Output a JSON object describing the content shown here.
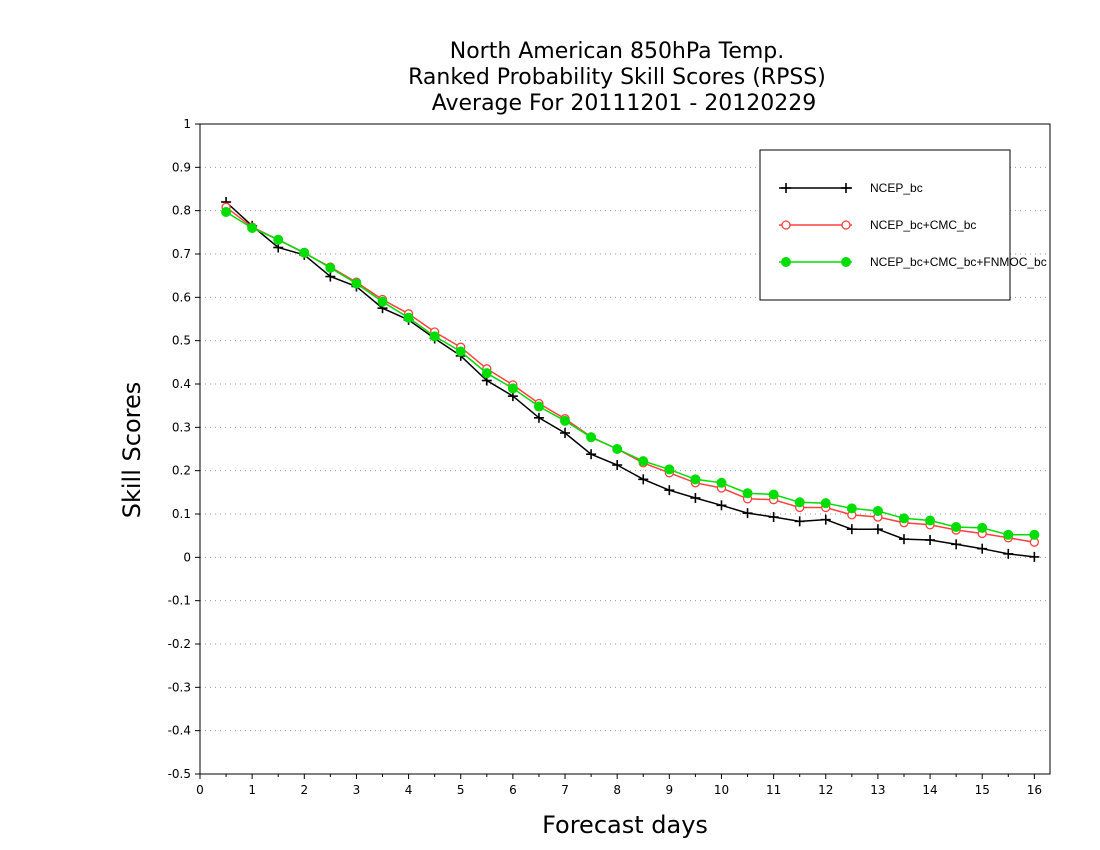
{
  "chart_data": {
    "type": "line",
    "title_lines": [
      "North American 850hPa Temp.",
      "Ranked Probability Skill Scores (RPSS)",
      "Average For 20111201 - 20120229"
    ],
    "xlabel": "Forecast days",
    "ylabel": "Skill Scores",
    "xlim": [
      0,
      16.3
    ],
    "ylim": [
      -0.5,
      1
    ],
    "x_ticks": [
      "0",
      "1",
      "2",
      "3",
      "4",
      "5",
      "6",
      "7",
      "8",
      "9",
      "10",
      "11",
      "12",
      "13",
      "14",
      "15",
      "16"
    ],
    "y_ticks": [
      "-0.5",
      "-0.4",
      "-0.3",
      "-0.2",
      "-0.1",
      "0",
      "0.1",
      "0.2",
      "0.3",
      "0.4",
      "0.5",
      "0.6",
      "0.7",
      "0.8",
      "0.9",
      "1"
    ],
    "grid": "horizontal dotted",
    "legend_position": "top-right",
    "x": [
      0.5,
      1,
      1.5,
      2,
      2.5,
      3,
      3.5,
      4,
      4.5,
      5,
      5.5,
      6,
      6.5,
      7,
      7.5,
      8,
      8.5,
      9,
      9.5,
      10,
      10.5,
      11,
      11.5,
      12,
      12.5,
      13,
      13.5,
      14,
      14.5,
      15,
      15.5,
      16
    ],
    "series": [
      {
        "name": "NCEP_bc",
        "color": "#000000",
        "marker": "plus",
        "values": [
          0.82,
          0.765,
          0.715,
          0.698,
          0.648,
          0.625,
          0.575,
          0.548,
          0.505,
          0.465,
          0.408,
          0.372,
          0.322,
          0.287,
          0.238,
          0.213,
          0.18,
          0.155,
          0.137,
          0.12,
          0.102,
          0.093,
          0.083,
          0.087,
          0.065,
          0.065,
          0.042,
          0.04,
          0.03,
          0.02,
          0.008,
          0.001
        ]
      },
      {
        "name": "NCEP_bc+CMC_bc",
        "color": "#ff4040",
        "marker": "open-circle",
        "values": [
          0.808,
          0.762,
          0.733,
          0.702,
          0.67,
          0.635,
          0.595,
          0.562,
          0.52,
          0.485,
          0.435,
          0.398,
          0.355,
          0.32,
          0.278,
          0.25,
          0.218,
          0.195,
          0.172,
          0.16,
          0.135,
          0.133,
          0.115,
          0.115,
          0.098,
          0.093,
          0.08,
          0.075,
          0.063,
          0.055,
          0.045,
          0.035
        ]
      },
      {
        "name": "NCEP_bc+CMC_bc+FNMOC_bc",
        "color": "#00dd00",
        "marker": "filled-circle",
        "values": [
          0.797,
          0.76,
          0.733,
          0.703,
          0.668,
          0.632,
          0.59,
          0.553,
          0.51,
          0.475,
          0.425,
          0.39,
          0.348,
          0.315,
          0.277,
          0.25,
          0.222,
          0.203,
          0.18,
          0.172,
          0.148,
          0.145,
          0.127,
          0.125,
          0.113,
          0.107,
          0.09,
          0.085,
          0.07,
          0.068,
          0.052,
          0.052
        ]
      }
    ]
  }
}
